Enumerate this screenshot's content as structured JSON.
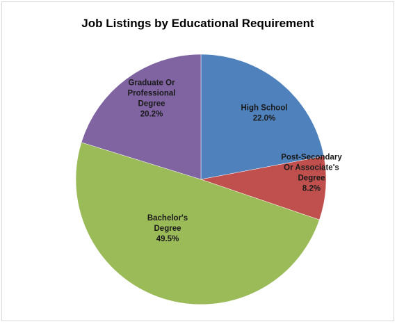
{
  "chart_data": {
    "type": "pie",
    "title": "Job Listings by Educational Requirement",
    "categories": [
      "High School",
      "Post-Secondary Or Associate's Degree",
      "Bachelor's Degree",
      "Graduate Or Professional Degree"
    ],
    "values": [
      22.0,
      8.2,
      49.5,
      20.2
    ],
    "value_labels": [
      "22.0%",
      "8.2%",
      "49.5%",
      "20.2%"
    ],
    "label_lines": [
      [
        "High School",
        "22.0%"
      ],
      [
        "Post-Secondary",
        "Or Associate's",
        "Degree",
        "8.2%"
      ],
      [
        "Bachelor's",
        "Degree",
        "49.5%"
      ],
      [
        "Graduate Or",
        "Professional",
        "Degree",
        "20.2%"
      ]
    ],
    "colors": [
      "#4f81bd",
      "#c0504d",
      "#9bbb59",
      "#8064a2"
    ],
    "start_angle": "12 o'clock",
    "direction": "clockwise",
    "legend": "none",
    "labels_inside": true
  }
}
